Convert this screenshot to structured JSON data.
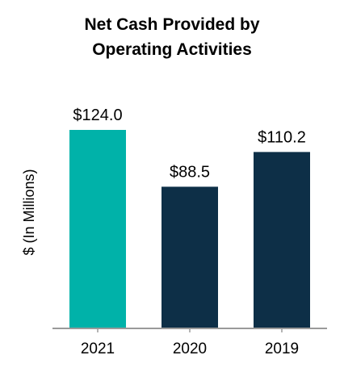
{
  "chart_data": {
    "type": "bar",
    "title_lines": [
      "Net Cash Provided by",
      "Operating Activities"
    ],
    "ylabel": "$ (In Millions)",
    "xlabel": "",
    "categories": [
      "2021",
      "2020",
      "2019"
    ],
    "values": [
      124.0,
      88.5,
      110.2
    ],
    "data_labels": [
      "$124.0",
      "$88.5",
      "$110.2"
    ],
    "bar_colors": [
      "#00b2a9",
      "#0d2f47",
      "#0d2f47"
    ],
    "ylim": [
      0,
      135
    ],
    "grid": false,
    "legend": "none"
  }
}
